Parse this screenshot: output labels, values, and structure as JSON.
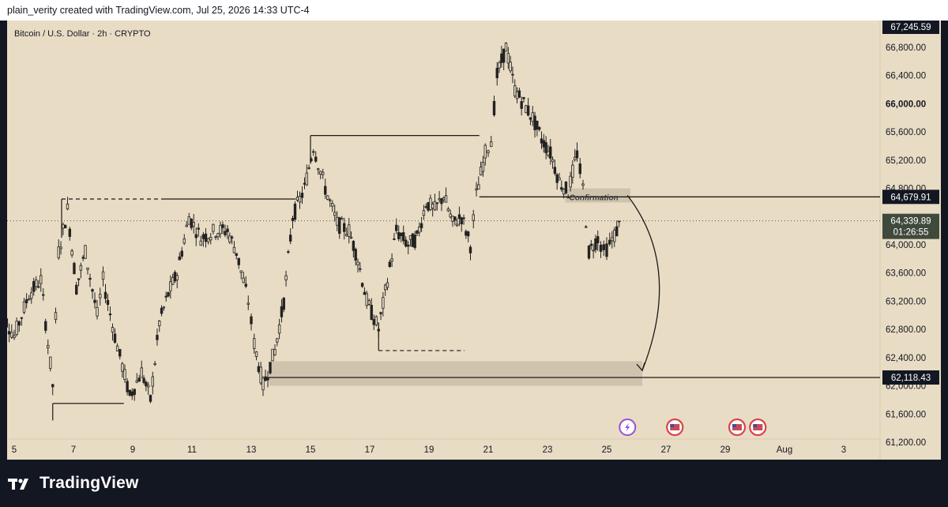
{
  "header": {
    "attribution": "plain_verity created with TradingView.com, Jul 25, 2026 14:33 UTC-4"
  },
  "footer": {
    "brand": "TradingView"
  },
  "colors": {
    "background": "#e9dcc4",
    "candle": "#222222",
    "zone": "#cfc3ad",
    "tag": "#131722",
    "live_tag": "#3f4a3d"
  },
  "chart_data": {
    "type": "candlestick",
    "title": "Bitcoin / U.S. Dollar · 2h · CRYPTO",
    "y_axis_labels": [
      "66,800.00",
      "66,400.00",
      "66,000.00",
      "65,600.00",
      "65,200.00",
      "64,800.00",
      "64,000.00",
      "63,600.00",
      "63,200.00",
      "62,800.00",
      "62,400.00",
      "62,000.00",
      "61,600.00",
      "61,200.00"
    ],
    "x_axis_labels": [
      "5",
      "7",
      "9",
      "11",
      "13",
      "15",
      "17",
      "19",
      "21",
      "23",
      "25",
      "27",
      "29",
      "Aug",
      "3"
    ],
    "ylim": [
      61100,
      67400
    ],
    "price_tags": {
      "top": "67,245.59",
      "resistance": "64,679.91",
      "current": "64,339.89",
      "countdown": "01:26:55",
      "target": "62,118.43"
    },
    "annotation": "Confirmation",
    "levels": {
      "resistance": 64679.91,
      "current": 64339.89,
      "target": 62118.43
    },
    "price_path": [
      [
        4.4,
        63200
      ],
      [
        5.0,
        62700
      ],
      [
        5.5,
        63300
      ],
      [
        5.9,
        63500
      ],
      [
        6.3,
        62000
      ],
      [
        6.5,
        63900
      ],
      [
        6.8,
        64500
      ],
      [
        7.1,
        63400
      ],
      [
        7.4,
        63900
      ],
      [
        7.8,
        63000
      ],
      [
        8.0,
        63500
      ],
      [
        8.4,
        62700
      ],
      [
        8.9,
        61850
      ],
      [
        9.3,
        62200
      ],
      [
        9.6,
        61800
      ],
      [
        9.9,
        62900
      ],
      [
        10.2,
        63300
      ],
      [
        10.5,
        63600
      ],
      [
        10.9,
        64400
      ],
      [
        11.3,
        64100
      ],
      [
        11.8,
        64200
      ],
      [
        12.2,
        64200
      ],
      [
        12.5,
        63900
      ],
      [
        12.9,
        63200
      ],
      [
        13.1,
        62600
      ],
      [
        13.4,
        62000
      ],
      [
        13.8,
        62500
      ],
      [
        14.1,
        63200
      ],
      [
        14.4,
        64400
      ],
      [
        14.8,
        64800
      ],
      [
        15.1,
        65400
      ],
      [
        15.5,
        64800
      ],
      [
        15.9,
        64300
      ],
      [
        16.3,
        64200
      ],
      [
        16.6,
        63800
      ],
      [
        16.9,
        63200
      ],
      [
        17.3,
        62800
      ],
      [
        17.6,
        63500
      ],
      [
        17.9,
        64200
      ],
      [
        18.3,
        64000
      ],
      [
        18.6,
        64100
      ],
      [
        18.9,
        64600
      ],
      [
        19.2,
        64500
      ],
      [
        19.5,
        64700
      ],
      [
        19.8,
        64300
      ],
      [
        20.1,
        64400
      ],
      [
        20.4,
        64000
      ],
      [
        20.6,
        64700
      ],
      [
        20.9,
        65300
      ],
      [
        21.1,
        65500
      ],
      [
        21.3,
        66400
      ],
      [
        21.6,
        66800
      ],
      [
        21.9,
        66200
      ],
      [
        22.2,
        66000
      ],
      [
        22.5,
        65800
      ],
      [
        22.8,
        65500
      ],
      [
        23.1,
        65300
      ],
      [
        23.4,
        64900
      ],
      [
        23.7,
        64750
      ],
      [
        24.0,
        65300
      ],
      [
        24.2,
        64800
      ],
      [
        24.4,
        63900
      ],
      [
        24.7,
        64100
      ],
      [
        24.9,
        63900
      ],
      [
        25.1,
        64000
      ],
      [
        25.5,
        64340
      ]
    ],
    "reference_lines": [
      {
        "style": "solid",
        "x": [
          6.3,
          8.7
        ],
        "y": 61750,
        "tail_to": 61600
      },
      {
        "style": "dashed",
        "x": [
          6.6,
          10.0
        ],
        "y": 64650
      },
      {
        "style": "solid",
        "x": [
          10.0,
          14.5
        ],
        "y": 64650
      },
      {
        "style": "solid",
        "x": [
          15.0,
          20.7
        ],
        "y": 65550
      },
      {
        "style": "dashed",
        "x": [
          17.3,
          20.2
        ],
        "y": 62500
      }
    ],
    "demand_zone": {
      "x": [
        13.6,
        26.2
      ],
      "y": [
        62000,
        62350
      ]
    },
    "confirmation_box": {
      "x": [
        23.6,
        25.8
      ],
      "y": [
        64600,
        64800
      ]
    },
    "arrow": {
      "from": [
        25.7,
        64700
      ],
      "to": [
        26.2,
        62150
      ]
    },
    "event_icons": [
      25.7,
      27.3,
      29.4,
      30.1
    ]
  }
}
